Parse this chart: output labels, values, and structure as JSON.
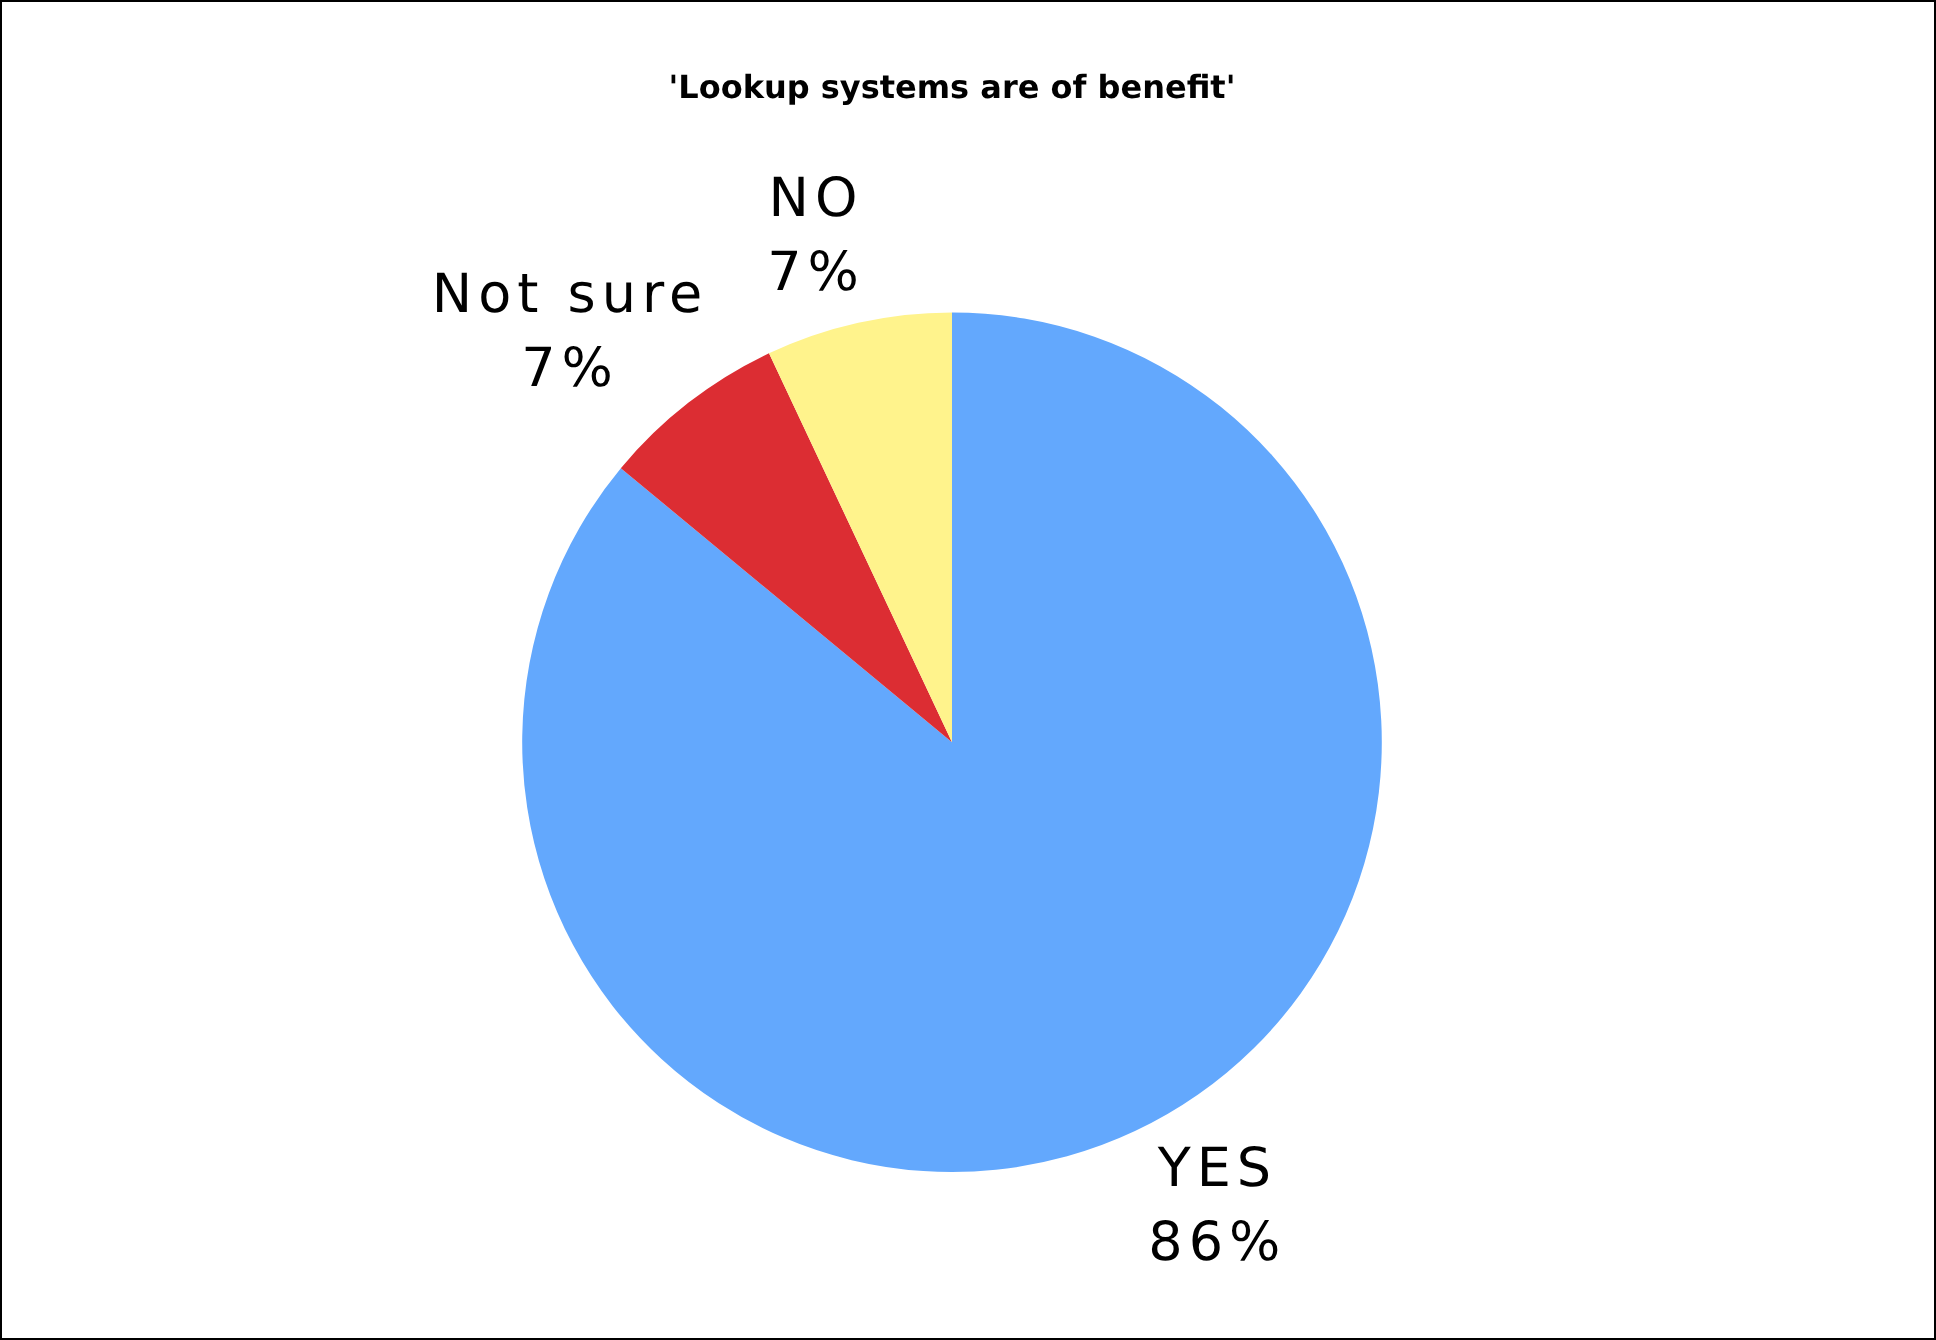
{
  "chart_data": {
    "type": "pie",
    "title": "'Lookup systems are of benefit'",
    "categories": [
      "YES",
      "Not sure",
      "NO"
    ],
    "values": [
      86,
      7,
      7
    ],
    "colors": [
      "#63a8fd",
      "#dc2d33",
      "#fff38c"
    ],
    "value_labels": [
      "86%",
      "7%",
      "7%"
    ]
  }
}
